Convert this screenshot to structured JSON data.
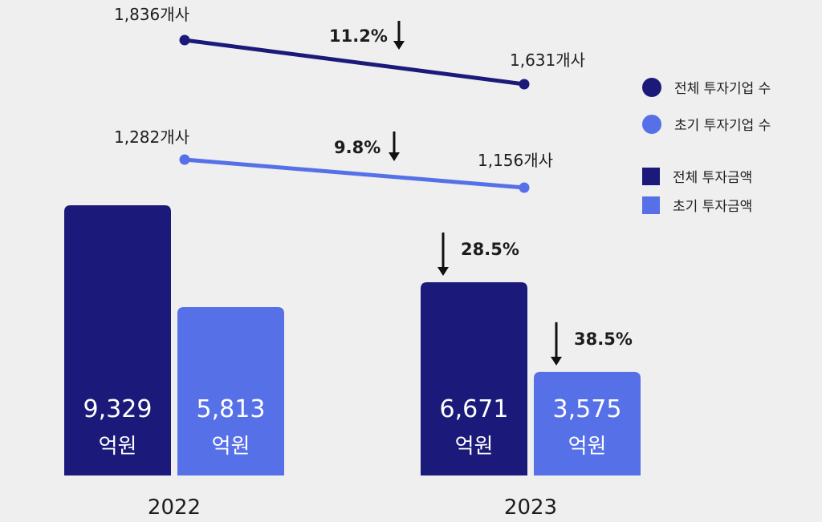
{
  "colors": {
    "total": "#1b1a7a",
    "early": "#5670e8",
    "arrow": "#111111",
    "text": "#1d1d1d",
    "background": "#efefef"
  },
  "chart_data": {
    "type": "bar",
    "categories": [
      "2022",
      "2023"
    ],
    "series": [
      {
        "key": "total_amount",
        "values": [
          9329,
          6671
        ],
        "value_labels": [
          "9,329",
          "6,671"
        ],
        "unit": "억원"
      },
      {
        "key": "early_amount",
        "values": [
          5813,
          3575
        ],
        "value_labels": [
          "5,813",
          "3,575"
        ],
        "unit": "억원"
      }
    ],
    "bar_changes": [
      "28.5%",
      "38.5%"
    ],
    "overlay_lines": [
      {
        "key": "total_count",
        "values": [
          1836,
          1631
        ],
        "value_labels": [
          "1,836개사",
          "1,631개사"
        ],
        "change": "11.2%"
      },
      {
        "key": "early_count",
        "values": [
          1282,
          1156
        ],
        "value_labels": [
          "1,282개사",
          "1,156개사"
        ],
        "change": "9.8%"
      }
    ],
    "legend": {
      "position": "right",
      "items": [
        "전체 투자기업 수",
        "초기 투자기업 수",
        "전체 투자금액",
        "초기 투자금액"
      ]
    },
    "grid": false,
    "title": "",
    "xlabel": "",
    "ylabel": ""
  }
}
